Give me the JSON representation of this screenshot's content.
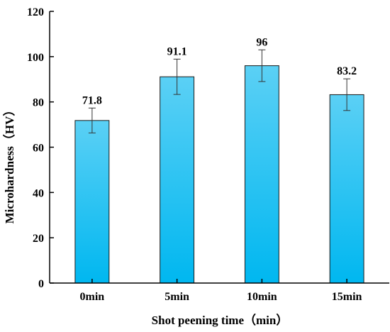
{
  "chart_data": {
    "type": "bar",
    "title": "",
    "xlabel": "Shot peening time（min）",
    "ylabel": "Microhardness（HV）",
    "categories": [
      "0min",
      "5min",
      "10min",
      "15min"
    ],
    "values": [
      71.8,
      91.1,
      96,
      83.2
    ],
    "value_labels": [
      "71.8",
      "91.1",
      "96",
      "83.2"
    ],
    "error": [
      5.5,
      7.8,
      7.0,
      7.0
    ],
    "ylim": [
      0,
      120
    ],
    "yticks": [
      0,
      20,
      40,
      60,
      80,
      100,
      120
    ],
    "grid": false,
    "legend": "none",
    "colors": {
      "bar_top": "#5bd0f5",
      "bar_bottom": "#00b7f0",
      "bar_edge": "#1a1a1a",
      "axis": "#000000"
    }
  }
}
